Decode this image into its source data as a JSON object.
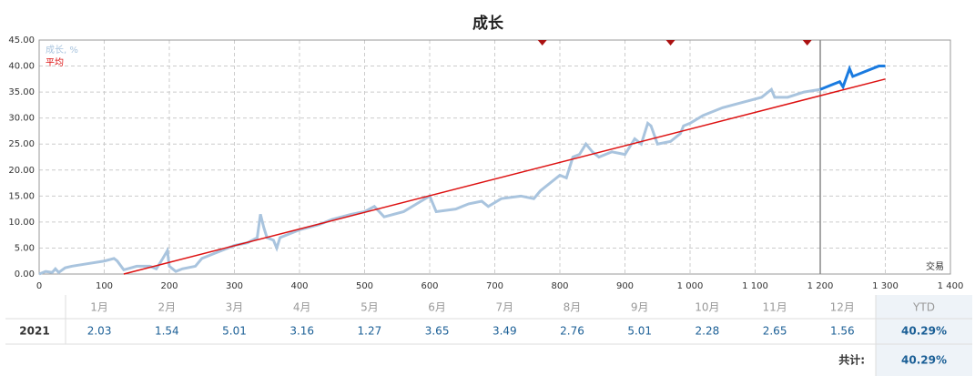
{
  "chart_data": {
    "type": "line",
    "title": "成长",
    "x_label": "交易",
    "xlim": [
      0,
      1400
    ],
    "ylim": [
      0,
      45
    ],
    "xticks": [
      0,
      100,
      200,
      300,
      400,
      500,
      600,
      700,
      800,
      900,
      {
        "value": 1000,
        "label": "1 000"
      },
      {
        "value": 1100,
        "label": "1 100"
      },
      {
        "value": 1200,
        "label": "1 200"
      },
      {
        "value": 1300,
        "label": "1 300"
      },
      {
        "value": 1400,
        "label": "1 400"
      }
    ],
    "yticks": [
      {
        "value": 0,
        "label": "0.00"
      },
      {
        "value": 5,
        "label": "5.00"
      },
      {
        "value": 10,
        "label": "10.00"
      },
      {
        "value": 15,
        "label": "15.00"
      },
      {
        "value": 20,
        "label": "20.00"
      },
      {
        "value": 25,
        "label": "25.00"
      },
      {
        "value": 30,
        "label": "30.00"
      },
      {
        "value": 35,
        "label": "35.00"
      },
      {
        "value": 40,
        "label": "40.00"
      },
      {
        "value": 45,
        "label": "45.00"
      }
    ],
    "grid": true,
    "series": [
      {
        "name": "成长, %",
        "color": "#a9c4de",
        "x": [
          0,
          10,
          20,
          25,
          30,
          40,
          50,
          75,
          100,
          115,
          120,
          130,
          150,
          170,
          180,
          190,
          197,
          200,
          210,
          220,
          240,
          250,
          270,
          300,
          320,
          335,
          340,
          345,
          350,
          360,
          365,
          370,
          400,
          430,
          450,
          480,
          500,
          515,
          530,
          560,
          580,
          600,
          610,
          640,
          660,
          680,
          690,
          710,
          740,
          760,
          770,
          800,
          810,
          820,
          830,
          840,
          850,
          860,
          880,
          900,
          915,
          925,
          935,
          940,
          950,
          970,
          985,
          990,
          1000,
          1020,
          1050,
          1080,
          1110,
          1125,
          1130,
          1150,
          1175,
          1200
        ],
        "values": [
          0,
          0.5,
          0.3,
          1.0,
          0.3,
          1.2,
          1.5,
          2.0,
          2.5,
          3.0,
          2.5,
          0.8,
          1.5,
          1.5,
          1.0,
          3.0,
          4.5,
          1.5,
          0.5,
          1.0,
          1.5,
          3.0,
          4.0,
          5.5,
          6.0,
          7.0,
          11.5,
          9.0,
          7.0,
          6.5,
          5.0,
          7.0,
          8.5,
          9.5,
          10.5,
          11.5,
          12.0,
          13.0,
          11.0,
          12.0,
          13.5,
          15.0,
          12.0,
          12.5,
          13.5,
          14.0,
          13.0,
          14.5,
          15.0,
          14.5,
          16.0,
          19.0,
          18.5,
          22.5,
          23.0,
          25.0,
          23.5,
          22.5,
          23.5,
          23.0,
          26.0,
          25.0,
          29.0,
          28.5,
          25.0,
          25.5,
          27.0,
          28.5,
          29.0,
          30.5,
          32.0,
          33.0,
          34.0,
          35.5,
          34.0,
          34.0,
          35.0,
          35.5
        ]
      },
      {
        "color": "#1a7be0",
        "x": [
          1200,
          1220,
          1230,
          1235,
          1245,
          1250,
          1270,
          1290,
          1300
        ],
        "values": [
          35.5,
          36.5,
          37.0,
          36.0,
          39.5,
          38.0,
          39.0,
          40.0,
          40.0
        ]
      },
      {
        "name": "平均",
        "color": "#dd1111",
        "x": [
          130,
          1300
        ],
        "values": [
          0,
          37.5
        ]
      }
    ],
    "markers_x": [
      773,
      970,
      1180
    ],
    "marker_color": "#aa1111",
    "divider_x": 1200
  },
  "table": {
    "header": [
      "1月",
      "2月",
      "3月",
      "4月",
      "5月",
      "6月",
      "7月",
      "8月",
      "9月",
      "10月",
      "11月",
      "12月",
      "YTD"
    ],
    "rows": [
      [
        "2021",
        "2.03",
        "1.54",
        "5.01",
        "3.16",
        "1.27",
        "3.65",
        "3.49",
        "2.76",
        "5.01",
        "2.28",
        "2.65",
        "1.56",
        "40.29%"
      ]
    ],
    "total_label": "共计:",
    "total": "40.29%"
  }
}
